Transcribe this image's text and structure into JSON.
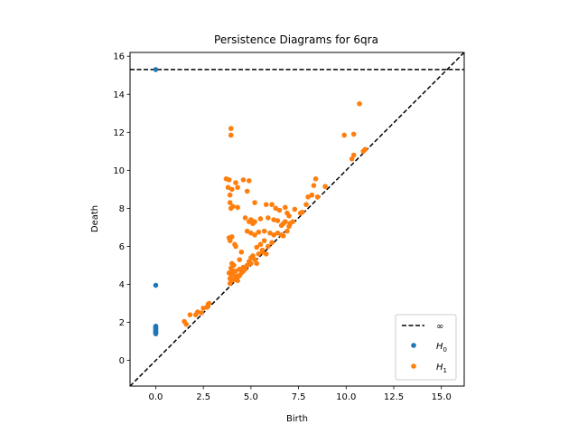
{
  "chart_data": {
    "type": "scatter",
    "title": "Persistence Diagrams for 6qra",
    "xlabel": "Birth",
    "ylabel": "Death",
    "xlim": [
      -1.35,
      16.2
    ],
    "ylim": [
      -1.35,
      16.2
    ],
    "xticks": [
      0,
      2.5,
      5,
      7.5,
      10,
      12.5,
      15
    ],
    "xtick_labels": [
      "0.0",
      "2.5",
      "5.0",
      "7.5",
      "10.0",
      "12.5",
      "15.0"
    ],
    "yticks": [
      0,
      2,
      4,
      6,
      8,
      10,
      12,
      14,
      16
    ],
    "ytick_labels": [
      "0",
      "2",
      "4",
      "6",
      "8",
      "10",
      "12",
      "14",
      "16"
    ],
    "grid": false,
    "legend_position": "bottom-right",
    "infinity_line": {
      "label": "∞",
      "y": 15.3,
      "color": "#000000",
      "style": "dashed"
    },
    "diagonal": {
      "color": "#000000",
      "style": "dashed"
    },
    "series": [
      {
        "name": "H0",
        "legend_main": "H",
        "legend_sub": "0",
        "color": "#1f77b4",
        "points": [
          [
            0,
            15.3
          ],
          [
            0,
            3.95
          ],
          [
            0,
            1.8
          ],
          [
            0,
            1.75
          ],
          [
            0,
            1.7
          ],
          [
            0,
            1.65
          ],
          [
            0,
            1.6
          ],
          [
            0,
            1.55
          ],
          [
            0,
            1.5
          ],
          [
            0,
            1.45
          ],
          [
            0,
            1.4
          ]
        ]
      },
      {
        "name": "H1",
        "legend_main": "H",
        "legend_sub": "1",
        "color": "#ff7f0e",
        "points": [
          [
            10.7,
            13.5
          ],
          [
            9.9,
            11.85
          ],
          [
            10.4,
            11.9
          ],
          [
            10.4,
            10.8
          ],
          [
            10.3,
            10.6
          ],
          [
            10.9,
            11.0
          ],
          [
            11.0,
            11.1
          ],
          [
            3.95,
            12.2
          ],
          [
            3.95,
            11.85
          ],
          [
            3.7,
            9.55
          ],
          [
            3.85,
            9.5
          ],
          [
            4.2,
            9.35
          ],
          [
            4.6,
            9.5
          ],
          [
            4.9,
            9.45
          ],
          [
            3.8,
            9.1
          ],
          [
            4.0,
            9.0
          ],
          [
            4.3,
            9.1
          ],
          [
            3.9,
            8.7
          ],
          [
            4.8,
            8.9
          ],
          [
            3.9,
            8.3
          ],
          [
            3.95,
            8.0
          ],
          [
            4.05,
            8.1
          ],
          [
            4.3,
            8.05
          ],
          [
            5.2,
            8.3
          ],
          [
            5.8,
            8.2
          ],
          [
            6.1,
            8.2
          ],
          [
            6.3,
            8.0
          ],
          [
            6.5,
            7.9
          ],
          [
            6.8,
            8.05
          ],
          [
            7.0,
            7.6
          ],
          [
            6.9,
            7.75
          ],
          [
            7.3,
            7.95
          ],
          [
            7.6,
            7.75
          ],
          [
            5.0,
            7.4
          ],
          [
            4.7,
            7.5
          ],
          [
            4.9,
            7.3
          ],
          [
            5.5,
            7.45
          ],
          [
            5.2,
            7.3
          ],
          [
            5.1,
            7.2
          ],
          [
            5.9,
            7.5
          ],
          [
            6.2,
            7.4
          ],
          [
            6.4,
            7.35
          ],
          [
            6.7,
            7.2
          ],
          [
            6.8,
            7.3
          ],
          [
            6.6,
            7.1
          ],
          [
            7.05,
            7.2
          ],
          [
            7.2,
            7.3
          ],
          [
            7.0,
            7.05
          ],
          [
            6.9,
            6.8
          ],
          [
            4.8,
            6.8
          ],
          [
            5.0,
            6.7
          ],
          [
            5.2,
            6.6
          ],
          [
            5.4,
            6.75
          ],
          [
            5.7,
            6.8
          ],
          [
            6.0,
            6.7
          ],
          [
            6.2,
            6.6
          ],
          [
            6.4,
            6.7
          ],
          [
            6.6,
            6.6
          ],
          [
            6.7,
            6.55
          ],
          [
            3.85,
            6.45
          ],
          [
            4.0,
            6.5
          ],
          [
            4.15,
            6.1
          ],
          [
            4.2,
            6.0
          ],
          [
            3.9,
            6.3
          ],
          [
            5.7,
            6.3
          ],
          [
            5.5,
            6.1
          ],
          [
            5.9,
            6.0
          ],
          [
            6.1,
            6.2
          ],
          [
            5.3,
            5.95
          ],
          [
            5.6,
            5.8
          ],
          [
            5.8,
            5.6
          ],
          [
            4.5,
            5.7
          ],
          [
            4.4,
            5.3
          ],
          [
            5.0,
            5.4
          ],
          [
            5.1,
            5.5
          ],
          [
            4.9,
            5.2
          ],
          [
            5.3,
            5.1
          ],
          [
            5.2,
            5.3
          ],
          [
            5.4,
            5.6
          ],
          [
            5.6,
            5.7
          ],
          [
            4.0,
            5.1
          ],
          [
            4.1,
            5.0
          ],
          [
            3.95,
            4.85
          ],
          [
            4.0,
            4.75
          ],
          [
            4.2,
            4.7
          ],
          [
            4.4,
            4.8
          ],
          [
            4.6,
            4.9
          ],
          [
            4.8,
            5.0
          ],
          [
            5.0,
            5.1
          ],
          [
            3.85,
            4.6
          ],
          [
            3.95,
            4.5
          ],
          [
            4.05,
            4.55
          ],
          [
            4.15,
            4.4
          ],
          [
            4.3,
            4.45
          ],
          [
            4.5,
            4.6
          ],
          [
            4.6,
            4.7
          ],
          [
            4.7,
            4.8
          ],
          [
            3.9,
            4.3
          ],
          [
            4.0,
            4.2
          ],
          [
            4.1,
            4.25
          ],
          [
            4.2,
            4.3
          ],
          [
            4.3,
            4.2
          ],
          [
            3.9,
            4.05
          ],
          [
            4.4,
            4.45
          ],
          [
            4.25,
            4.35
          ],
          [
            8.4,
            9.55
          ],
          [
            8.3,
            9.2
          ],
          [
            8.9,
            9.15
          ],
          [
            8.2,
            8.7
          ],
          [
            8.0,
            8.6
          ],
          [
            8.5,
            8.6
          ],
          [
            7.9,
            8.2
          ],
          [
            7.7,
            7.8
          ],
          [
            1.5,
            2.05
          ],
          [
            1.6,
            1.9
          ],
          [
            1.8,
            2.4
          ],
          [
            2.1,
            2.4
          ],
          [
            2.2,
            2.55
          ],
          [
            2.4,
            2.5
          ],
          [
            2.5,
            2.75
          ],
          [
            2.7,
            2.8
          ],
          [
            2.75,
            2.95
          ],
          [
            2.8,
            3.0
          ]
        ]
      }
    ]
  }
}
